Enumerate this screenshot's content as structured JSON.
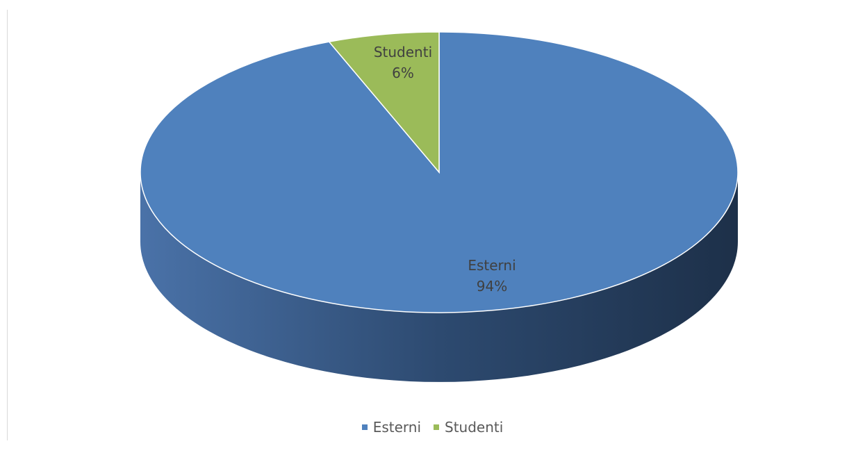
{
  "chart_data": {
    "type": "pie",
    "style": "3d",
    "title": "",
    "categories": [
      "Esterni",
      "Studenti"
    ],
    "values": [
      94,
      6
    ],
    "value_labels": [
      "94%",
      "6%"
    ],
    "colors": [
      "#4f81bd",
      "#9bbb59"
    ],
    "legend": "bottom",
    "data_labels": "inside"
  },
  "legend": {
    "items": [
      {
        "label": "Esterni",
        "color": "#4f81bd"
      },
      {
        "label": "Studenti",
        "color": "#9bbb59"
      }
    ]
  }
}
